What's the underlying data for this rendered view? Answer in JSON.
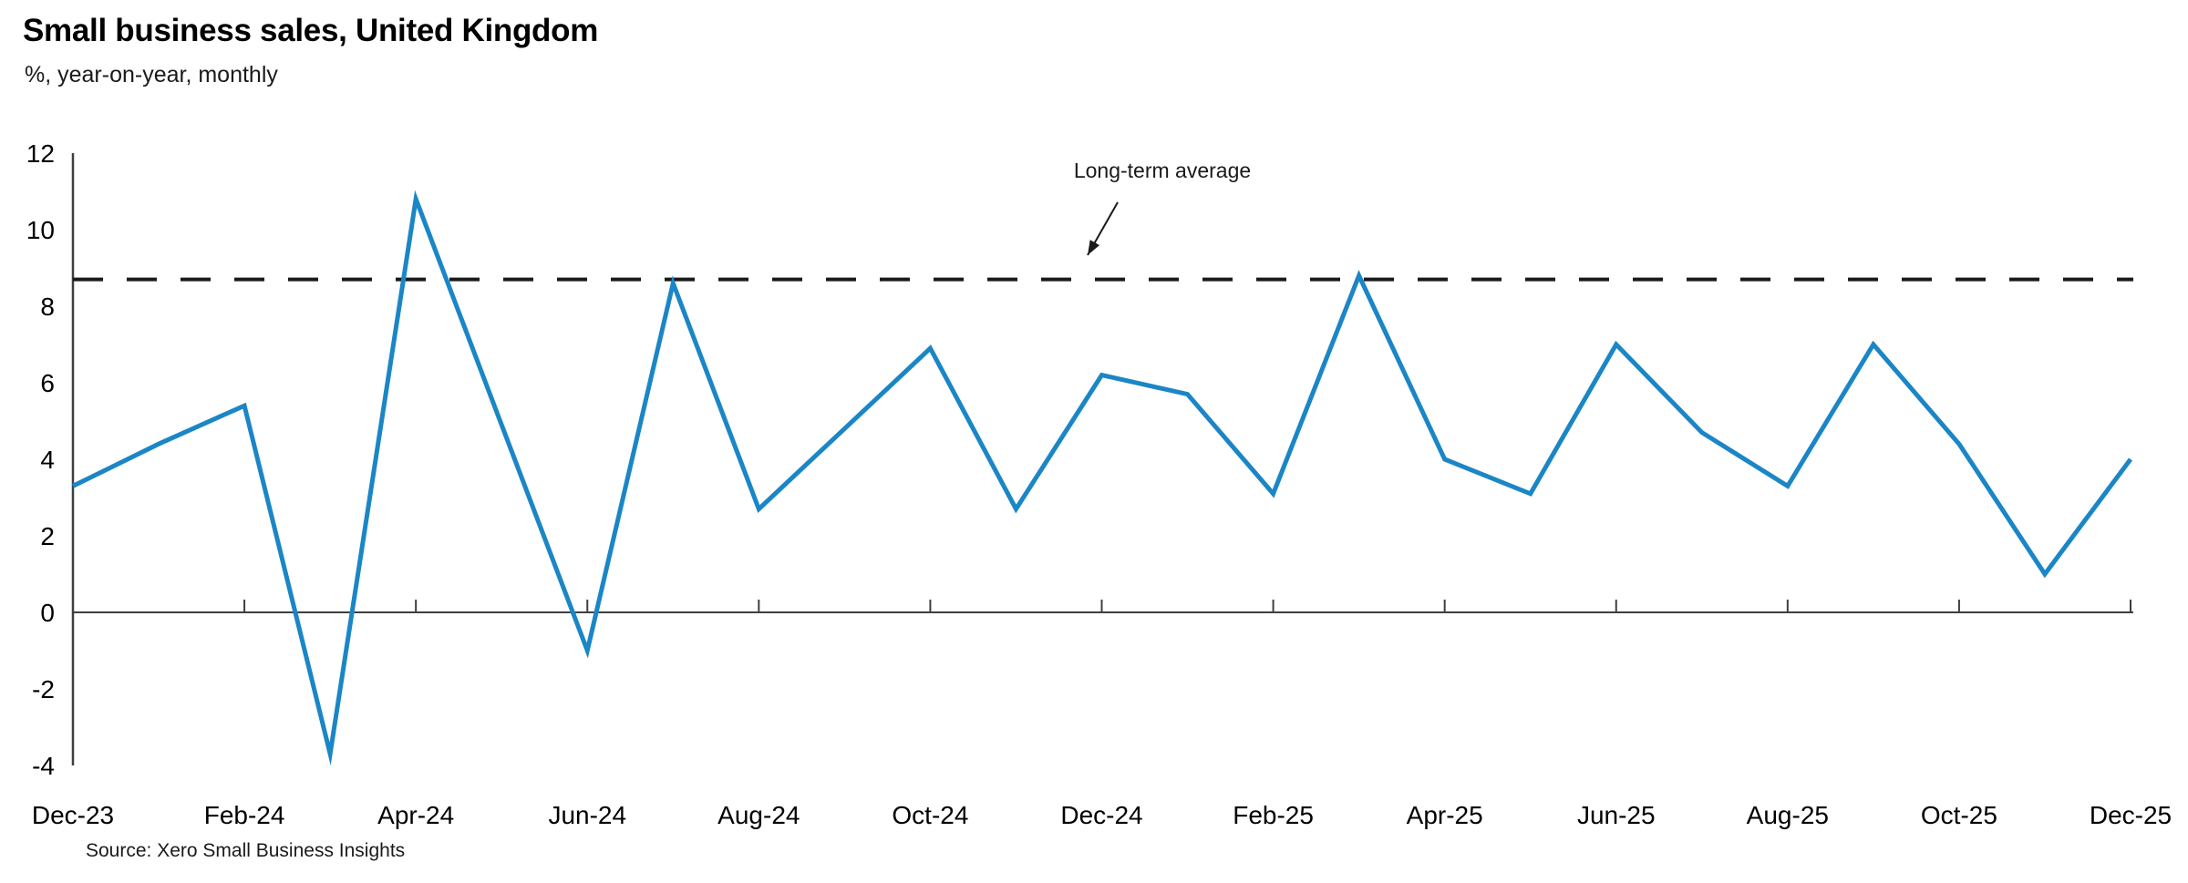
{
  "chart_data": {
    "type": "line",
    "title": "Small business sales, United Kingdom",
    "subtitle": "%, year-on-year, monthly",
    "source": "Source: Xero Small Business Insights",
    "annotation": "Long-term average",
    "categories": [
      "Dec-23",
      "Jan-24",
      "Feb-24",
      "Mar-24",
      "Apr-24",
      "May-24",
      "Jun-24",
      "Jul-24",
      "Aug-24",
      "Sep-24",
      "Oct-24",
      "Nov-24",
      "Dec-24",
      "Jan-25",
      "Feb-25",
      "Mar-25",
      "Apr-25",
      "May-25",
      "Jun-25",
      "Jul-25",
      "Aug-25",
      "Sep-25",
      "Oct-25",
      "Nov-25",
      "Dec-25"
    ],
    "values": [
      3.3,
      4.4,
      5.4,
      -3.7,
      10.8,
      4.9,
      -1.0,
      8.6,
      2.7,
      4.8,
      6.9,
      2.7,
      6.2,
      5.7,
      3.1,
      8.8,
      4.0,
      3.1,
      7.0,
      4.7,
      3.3,
      7.0,
      4.4,
      1.0,
      4.0
    ],
    "series_name": "Small business sales, % year-on-year",
    "long_term_average": 8.7,
    "y_ticks": [
      12,
      10,
      8,
      6,
      4,
      2,
      0,
      -2,
      -4
    ],
    "x_tick_labels": [
      "Dec-23",
      "Feb-24",
      "Apr-24",
      "Jun-24",
      "Aug-24",
      "Oct-24",
      "Dec-24",
      "Feb-25",
      "Apr-25",
      "Jun-25",
      "Aug-25",
      "Oct-25",
      "Dec-25"
    ],
    "ylim": [
      -4,
      12
    ],
    "grid": "none",
    "legend": "none",
    "line_color": "#1B86C6",
    "average_line_color": "#1A1A1A",
    "axis_color": "#3F3F3F",
    "text_color": "#000000"
  }
}
